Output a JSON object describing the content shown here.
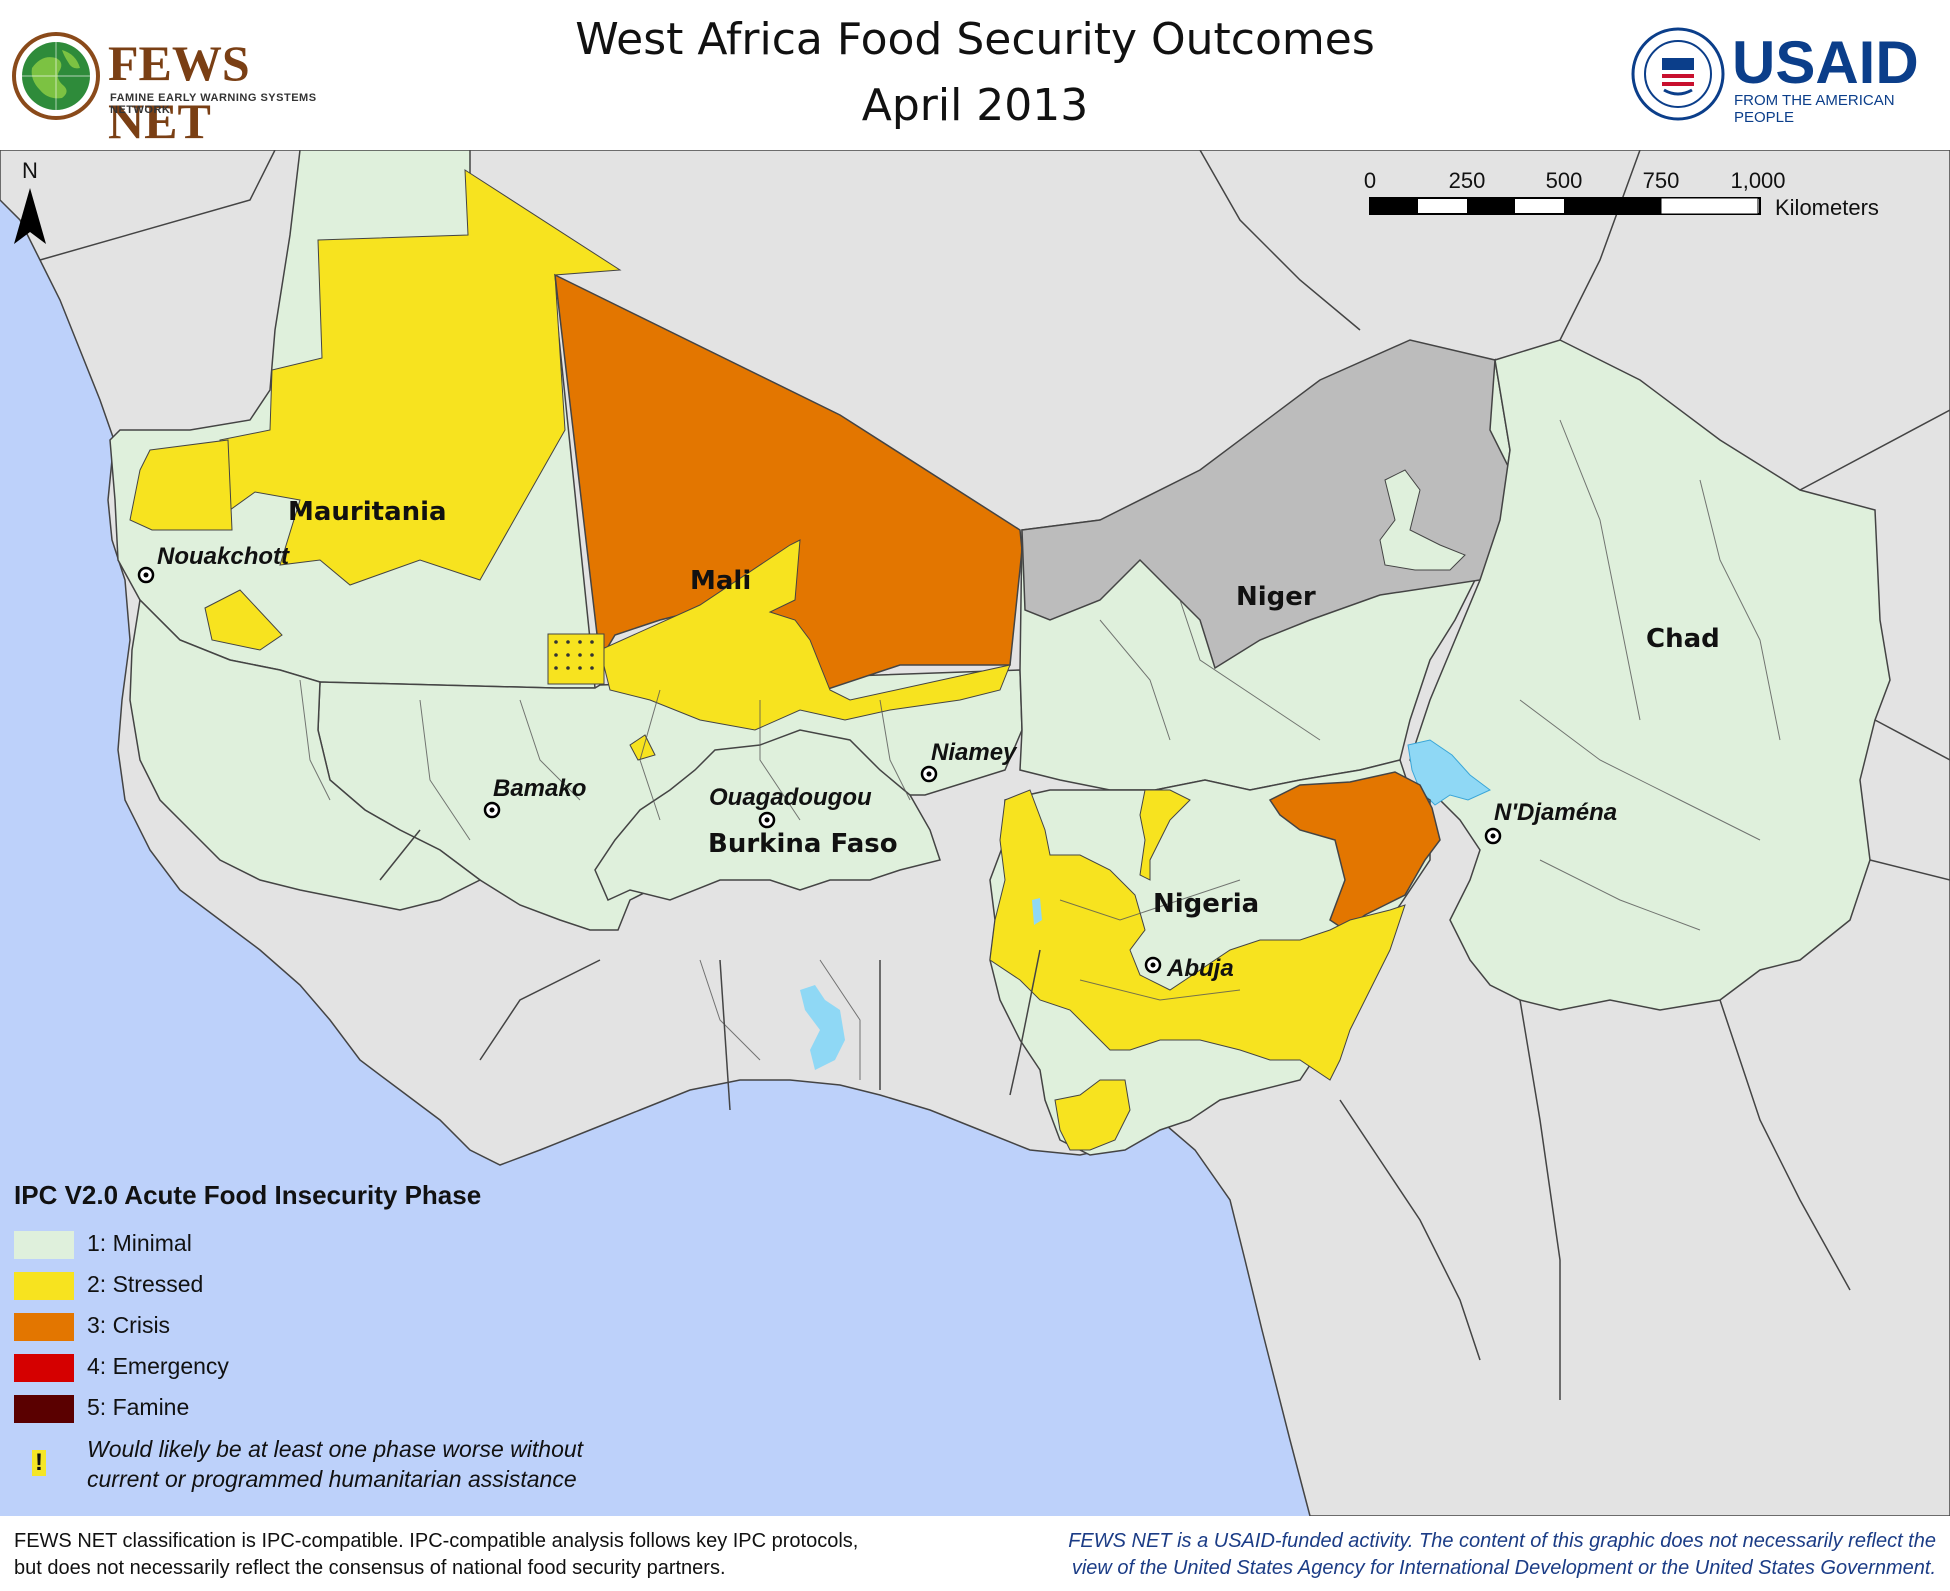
{
  "header": {
    "title_line1": "West Africa Food Security Outcomes",
    "title_line2": "April 2013"
  },
  "logos": {
    "fews_name": "FEWS NET",
    "fews_subtitle": "FAMINE EARLY WARNING SYSTEMS NETWORK",
    "usaid_name": "USAID",
    "usaid_subtitle": "FROM THE AMERICAN PEOPLE"
  },
  "map": {
    "north_label": "N",
    "scale": {
      "ticks": [
        "0",
        "250",
        "500",
        "750",
        "1,000"
      ],
      "unit": "Kilometers"
    },
    "countries": {
      "mauritania": "Mauritania",
      "mali": "Mali",
      "niger": "Niger",
      "chad": "Chad",
      "burkina_faso": "Burkina Faso",
      "nigeria": "Nigeria"
    },
    "cities": {
      "nouakchott": "Nouakchott",
      "bamako": "Bamako",
      "ouagadougou": "Ouagadougou",
      "niamey": "Niamey",
      "ndjamena": "N'Djaména",
      "abuja": "Abuja"
    },
    "colors": {
      "ocean": "#bdd1fa",
      "land_other": "#e3e3e3",
      "no_data": "#bcbcbc",
      "water": "#8fd8f5"
    }
  },
  "legend": {
    "title": "IPC V2.0 Acute Food Insecurity Phase",
    "phases": [
      {
        "label": "1: Minimal",
        "color": "#dff0dc"
      },
      {
        "label": "2: Stressed",
        "color": "#f7e31f"
      },
      {
        "label": "3: Crisis",
        "color": "#e37600"
      },
      {
        "label": "4: Emergency",
        "color": "#d50000"
      },
      {
        "label": "5: Famine",
        "color": "#5a0000"
      }
    ],
    "note_symbol": "!",
    "note_line1": "Would likely be at least one phase worse without",
    "note_line2": "current or programmed humanitarian assistance"
  },
  "footer": {
    "left_line1": "FEWS NET classification is IPC-compatible. IPC-compatible analysis follows key IPC protocols,",
    "left_line2": "but does not necessarily reflect the consensus of national food security partners.",
    "right_line1": "FEWS NET is a USAID-funded activity. The content of this graphic does not necessarily reflect the",
    "right_line2": "view of the United States Agency for International Development or the United States Government."
  }
}
